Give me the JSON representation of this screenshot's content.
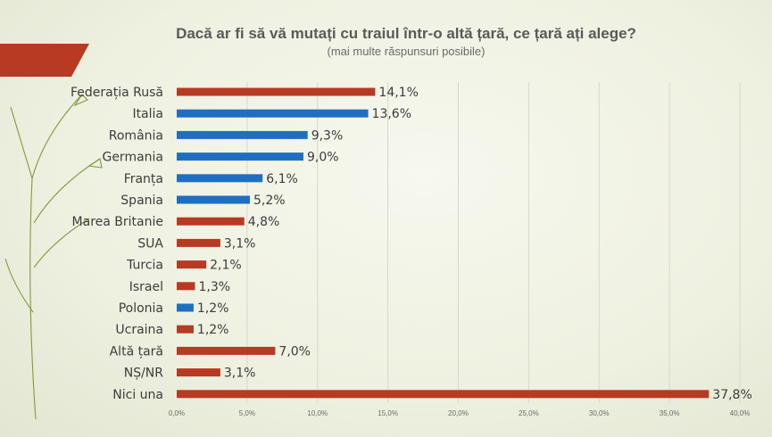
{
  "chart_data": {
    "type": "bar",
    "orientation": "horizontal",
    "title": "Dacă ar fi să vă mutați cu traiul într-o altă țară, ce țară ați alege?",
    "subtitle": "(mai multe răspunsuri posibile)",
    "categories": [
      "Federația Rusă",
      "Italia",
      "România",
      "Germania",
      "Franța",
      "Spania",
      "Marea Britanie",
      "SUA",
      "Turcia",
      "Israel",
      "Polonia",
      "Ucraina",
      "Altă țară",
      "NȘ/NR",
      "Nici una"
    ],
    "values": [
      14.1,
      13.6,
      9.3,
      9.0,
      6.1,
      5.2,
      4.8,
      3.1,
      2.1,
      1.3,
      1.2,
      1.2,
      7.0,
      3.1,
      37.8
    ],
    "value_labels": [
      "14,1%",
      "13,6%",
      "9,3%",
      "9,0%",
      "6,1%",
      "5,2%",
      "4,8%",
      "3,1%",
      "2,1%",
      "1,3%",
      "1,2%",
      "1,2%",
      "7,0%",
      "3,1%",
      "37,8%"
    ],
    "bar_colors": [
      "#b83a22",
      "#1f6fc1",
      "#1f6fc1",
      "#1f6fc1",
      "#1f6fc1",
      "#1f6fc1",
      "#b83a22",
      "#b83a22",
      "#b83a22",
      "#b83a22",
      "#1f6fc1",
      "#b83a22",
      "#b83a22",
      "#b83a22",
      "#b83a22"
    ],
    "xlim": [
      0,
      40
    ],
    "x_ticks": [
      0,
      5,
      10,
      15,
      20,
      25,
      30,
      35,
      40
    ],
    "x_tick_labels": [
      "0,0%",
      "5,0%",
      "10,0%",
      "15,0%",
      "20,0%",
      "25,0%",
      "30,0%",
      "35,0%",
      "40,0%"
    ],
    "grid": true,
    "legend": "none"
  },
  "decor": {
    "banner_color": "#b83a22",
    "leaf_color": "#7f9a3c"
  }
}
